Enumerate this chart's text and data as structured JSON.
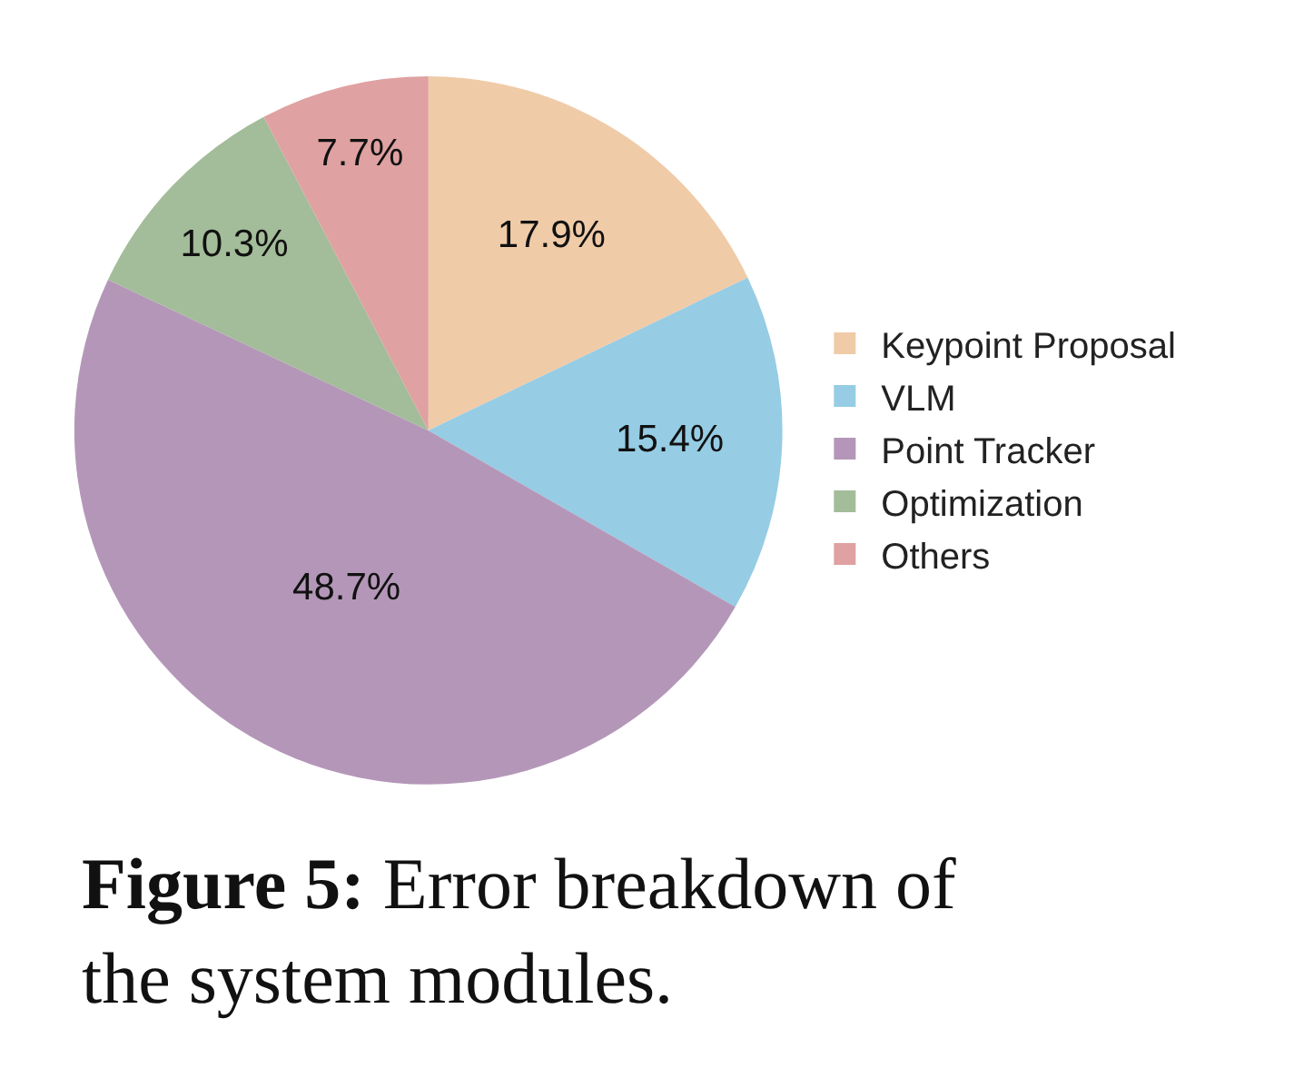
{
  "chart_data": {
    "type": "pie",
    "categories": [
      "Keypoint Proposal",
      "VLM",
      "Point Tracker",
      "Optimization",
      "Others"
    ],
    "values": [
      17.9,
      15.4,
      48.7,
      10.3,
      7.7
    ],
    "colors": [
      "#f0cba8",
      "#96cce4",
      "#b497b8",
      "#a3bc99",
      "#dfa1a1"
    ],
    "value_labels": [
      "17.9%",
      "15.4%",
      "48.7%",
      "10.3%",
      "7.7%"
    ],
    "legend": "right",
    "annotations": [
      "Figure 5: Error breakdown of the system modules."
    ]
  }
}
